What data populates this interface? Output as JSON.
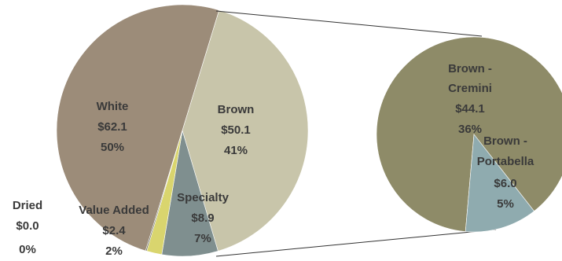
{
  "chart_data": {
    "type": "pie",
    "colors": {
      "white": "#9c8c79",
      "brown": "#c8c5aa",
      "specialty": "#7f8f8f",
      "value_added": "#d9d56e",
      "dried": "#6e6e60",
      "cremini": "#8e8b68",
      "portabella": "#8fabaf",
      "connector": "#333333"
    },
    "main_pie": {
      "slices": [
        {
          "key": "white",
          "label": "White",
          "value_text": "$62.1",
          "pct_text": "50%",
          "value": 62.1,
          "pct": 50.0
        },
        {
          "key": "brown",
          "label": "Brown",
          "value_text": "$50.1",
          "pct_text": "41%",
          "value": 50.1,
          "pct": 40.7
        },
        {
          "key": "specialty",
          "label": "Specialty",
          "value_text": "$8.9",
          "pct_text": "7%",
          "value": 8.9,
          "pct": 7.2
        },
        {
          "key": "value_added",
          "label": "Value Added",
          "value_text": "$2.4",
          "pct_text": "2%",
          "value": 2.4,
          "pct": 1.95
        },
        {
          "key": "dried",
          "label": "Dried",
          "value_text": "$0.0",
          "pct_text": "0%",
          "value": 0.0,
          "pct": 0.15
        }
      ]
    },
    "breakout_pie": {
      "source": "brown",
      "slices": [
        {
          "key": "cremini",
          "label_line1": "Brown -",
          "label_line2": "Cremini",
          "value_text": "$44.1",
          "pct_text": "36%",
          "value": 44.1
        },
        {
          "key": "portabella",
          "label_line1": "Brown -",
          "label_line2": "Portabella",
          "value_text": "$6.0",
          "pct_text": "5%",
          "value": 6.0
        }
      ]
    }
  }
}
